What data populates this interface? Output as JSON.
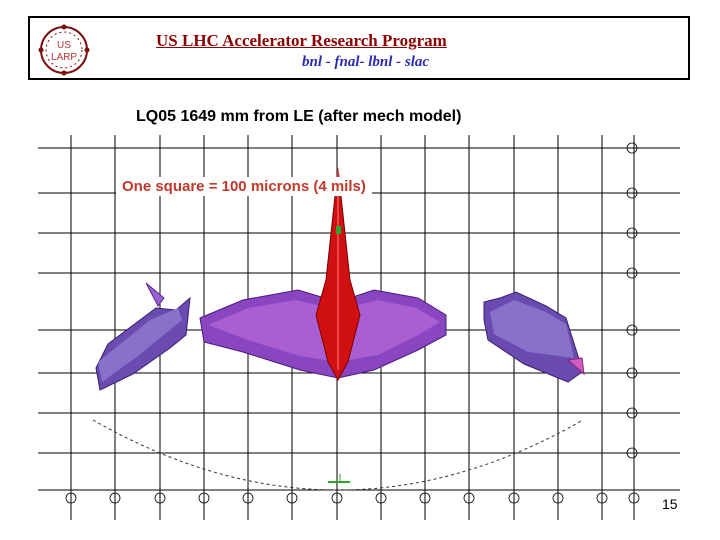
{
  "header": {
    "logo": {
      "line1": "US",
      "line2": "LARP"
    },
    "title": "US LHC Accelerator Research Program",
    "subtitle": "bnl - fnal- lbnl - slac"
  },
  "slide": {
    "title": "LQ05  1649 mm from LE (after mech model)",
    "annotation": "One square = 100 microns (4 mils)",
    "page_number": "15"
  },
  "colors": {
    "header_title": "#8b0000",
    "header_subtitle": "#2b2bb0",
    "annotation": "#c0392b",
    "peak": "#d01010",
    "ridge": "#7a3fb8"
  }
}
